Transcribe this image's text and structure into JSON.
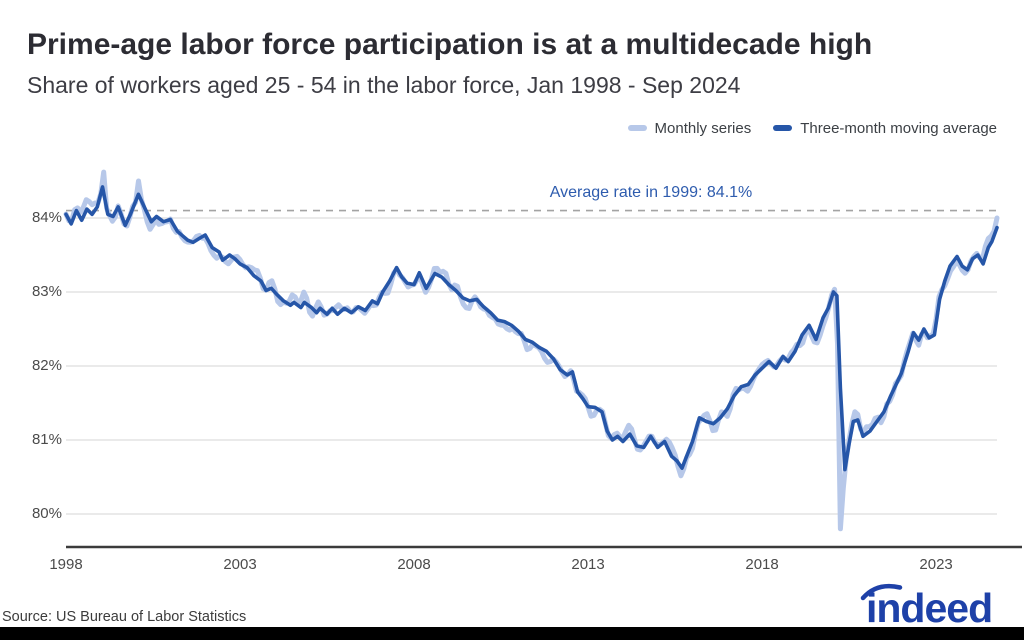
{
  "header": {
    "title": "Prime-age labor force participation is at a multidecade high",
    "subtitle": "Share of workers aged 25 - 54 in the labor force, Jan 1998 - Sep 2024"
  },
  "legend": {
    "items": [
      {
        "label": "Monthly series",
        "color": "#b7c8e9"
      },
      {
        "label": "Three-month moving average",
        "color": "#2656a8"
      }
    ]
  },
  "annotation": {
    "text": "Average rate in 1999: 84.1%"
  },
  "source": {
    "text": "Source: US Bureau of Labor Statistics"
  },
  "logo": {
    "text": "indeed",
    "color": "#1e41a8"
  },
  "colors": {
    "title": "#2c2c33",
    "subtitle": "#3d3d44",
    "grid": "#dedede",
    "axis": "#3b3b3b",
    "dashed_reference": "#a3a3a3",
    "tick_text": "#4b4b4b",
    "annotation_text": "#2e5cae",
    "monthly_series": "#b7c8e9",
    "moving_average": "#2656a8",
    "background": "#ffffff"
  },
  "chart_data": {
    "type": "line",
    "title": "Prime-age labor force participation is at a multidecade high",
    "subtitle": "Share of workers aged 25 - 54 in the labor force, Jan 1998 - Sep 2024",
    "xlabel": "",
    "ylabel": "",
    "x_ticks": [
      1998,
      2003,
      2008,
      2013,
      2018,
      2023
    ],
    "y_ticks": [
      {
        "value": 84,
        "label": "84%"
      },
      {
        "value": 83,
        "label": "83%"
      },
      {
        "value": 82,
        "label": "82%"
      },
      {
        "value": 81,
        "label": "81%"
      },
      {
        "value": 80,
        "label": "80%"
      }
    ],
    "xlim": [
      1998,
      2024.75
    ],
    "ylim": [
      79.55,
      84.72
    ],
    "grid": true,
    "legend_position": "top-right",
    "reference_line": {
      "value": 84.1,
      "label": "Average rate in 1999: 84.1%",
      "style": "dashed"
    },
    "series": [
      {
        "name": "Monthly series",
        "type": "derived",
        "basis": "Three-month moving average",
        "noise_amplitude": 0.11,
        "extreme_points": [
          [
            1999.08,
            84.62
          ],
          [
            2000.08,
            84.5
          ],
          [
            2020.17,
            82.3
          ],
          [
            2020.25,
            79.8
          ],
          [
            2020.33,
            80.35
          ],
          [
            2024.75,
            84.0
          ]
        ]
      },
      {
        "name": "Three-month moving average",
        "points": [
          [
            1998.0,
            84.05
          ],
          [
            1998.15,
            83.92
          ],
          [
            1998.3,
            84.1
          ],
          [
            1998.45,
            83.97
          ],
          [
            1998.6,
            84.12
          ],
          [
            1998.75,
            84.05
          ],
          [
            1998.9,
            84.15
          ],
          [
            1999.05,
            84.42
          ],
          [
            1999.2,
            84.05
          ],
          [
            1999.35,
            84.02
          ],
          [
            1999.5,
            84.15
          ],
          [
            1999.7,
            83.9
          ],
          [
            1999.85,
            84.05
          ],
          [
            2000.08,
            84.32
          ],
          [
            2000.3,
            84.1
          ],
          [
            2000.45,
            83.95
          ],
          [
            2000.6,
            84.02
          ],
          [
            2000.8,
            83.95
          ],
          [
            2001.0,
            83.98
          ],
          [
            2001.2,
            83.82
          ],
          [
            2001.35,
            83.76
          ],
          [
            2001.5,
            83.7
          ],
          [
            2001.65,
            83.67
          ],
          [
            2001.85,
            83.73
          ],
          [
            2002.0,
            83.77
          ],
          [
            2002.2,
            83.6
          ],
          [
            2002.4,
            83.54
          ],
          [
            2002.5,
            83.43
          ],
          [
            2002.7,
            83.5
          ],
          [
            2002.85,
            83.45
          ],
          [
            2003.0,
            83.38
          ],
          [
            2003.2,
            83.33
          ],
          [
            2003.4,
            83.22
          ],
          [
            2003.6,
            83.15
          ],
          [
            2003.75,
            83.02
          ],
          [
            2003.9,
            83.05
          ],
          [
            2004.05,
            82.97
          ],
          [
            2004.25,
            82.88
          ],
          [
            2004.45,
            82.82
          ],
          [
            2004.55,
            82.86
          ],
          [
            2004.75,
            82.79
          ],
          [
            2004.85,
            82.86
          ],
          [
            2005.05,
            82.79
          ],
          [
            2005.2,
            82.72
          ],
          [
            2005.3,
            82.78
          ],
          [
            2005.5,
            82.7
          ],
          [
            2005.65,
            82.78
          ],
          [
            2005.8,
            82.7
          ],
          [
            2006.0,
            82.78
          ],
          [
            2006.2,
            82.72
          ],
          [
            2006.4,
            82.8
          ],
          [
            2006.6,
            82.75
          ],
          [
            2006.8,
            82.88
          ],
          [
            2006.95,
            82.84
          ],
          [
            2007.1,
            83.0
          ],
          [
            2007.3,
            83.15
          ],
          [
            2007.5,
            83.33
          ],
          [
            2007.65,
            83.2
          ],
          [
            2007.8,
            83.12
          ],
          [
            2008.0,
            83.1
          ],
          [
            2008.15,
            83.26
          ],
          [
            2008.35,
            83.05
          ],
          [
            2008.6,
            83.25
          ],
          [
            2008.8,
            83.2
          ],
          [
            2009.0,
            83.1
          ],
          [
            2009.2,
            83.02
          ],
          [
            2009.4,
            82.92
          ],
          [
            2009.6,
            82.88
          ],
          [
            2009.8,
            82.9
          ],
          [
            2010.0,
            82.8
          ],
          [
            2010.2,
            82.72
          ],
          [
            2010.4,
            82.62
          ],
          [
            2010.6,
            82.6
          ],
          [
            2010.8,
            82.55
          ],
          [
            2011.0,
            82.47
          ],
          [
            2011.2,
            82.36
          ],
          [
            2011.4,
            82.32
          ],
          [
            2011.6,
            82.25
          ],
          [
            2011.8,
            82.2
          ],
          [
            2012.0,
            82.1
          ],
          [
            2012.2,
            81.95
          ],
          [
            2012.4,
            81.88
          ],
          [
            2012.55,
            81.92
          ],
          [
            2012.7,
            81.65
          ],
          [
            2012.85,
            81.56
          ],
          [
            2013.0,
            81.45
          ],
          [
            2013.2,
            81.44
          ],
          [
            2013.4,
            81.38
          ],
          [
            2013.55,
            81.12
          ],
          [
            2013.7,
            81.0
          ],
          [
            2013.85,
            81.05
          ],
          [
            2014.0,
            80.98
          ],
          [
            2014.2,
            81.08
          ],
          [
            2014.4,
            80.92
          ],
          [
            2014.6,
            80.9
          ],
          [
            2014.8,
            81.05
          ],
          [
            2015.0,
            80.9
          ],
          [
            2015.2,
            80.98
          ],
          [
            2015.4,
            80.78
          ],
          [
            2015.55,
            80.72
          ],
          [
            2015.7,
            80.62
          ],
          [
            2015.85,
            80.8
          ],
          [
            2016.0,
            80.98
          ],
          [
            2016.2,
            81.3
          ],
          [
            2016.4,
            81.25
          ],
          [
            2016.6,
            81.22
          ],
          [
            2016.8,
            81.3
          ],
          [
            2017.0,
            81.42
          ],
          [
            2017.2,
            81.6
          ],
          [
            2017.4,
            81.72
          ],
          [
            2017.6,
            81.75
          ],
          [
            2017.8,
            81.88
          ],
          [
            2018.0,
            81.97
          ],
          [
            2018.2,
            82.06
          ],
          [
            2018.4,
            81.97
          ],
          [
            2018.6,
            82.13
          ],
          [
            2018.75,
            82.06
          ],
          [
            2018.95,
            82.2
          ],
          [
            2019.15,
            82.42
          ],
          [
            2019.35,
            82.55
          ],
          [
            2019.55,
            82.36
          ],
          [
            2019.75,
            82.65
          ],
          [
            2019.9,
            82.78
          ],
          [
            2020.05,
            83.0
          ],
          [
            2020.15,
            82.95
          ],
          [
            2020.25,
            81.7
          ],
          [
            2020.38,
            80.6
          ],
          [
            2020.5,
            80.95
          ],
          [
            2020.62,
            81.25
          ],
          [
            2020.75,
            81.27
          ],
          [
            2020.9,
            81.05
          ],
          [
            2021.1,
            81.12
          ],
          [
            2021.3,
            81.25
          ],
          [
            2021.5,
            81.38
          ],
          [
            2021.7,
            81.6
          ],
          [
            2021.85,
            81.75
          ],
          [
            2022.0,
            81.9
          ],
          [
            2022.2,
            82.2
          ],
          [
            2022.35,
            82.45
          ],
          [
            2022.5,
            82.35
          ],
          [
            2022.65,
            82.5
          ],
          [
            2022.8,
            82.38
          ],
          [
            2022.95,
            82.42
          ],
          [
            2023.1,
            82.9
          ],
          [
            2023.25,
            83.15
          ],
          [
            2023.4,
            83.35
          ],
          [
            2023.6,
            83.48
          ],
          [
            2023.75,
            83.35
          ],
          [
            2023.9,
            83.3
          ],
          [
            2024.05,
            83.45
          ],
          [
            2024.2,
            83.5
          ],
          [
            2024.35,
            83.38
          ],
          [
            2024.5,
            83.6
          ],
          [
            2024.6,
            83.68
          ],
          [
            2024.75,
            83.87
          ]
        ]
      }
    ]
  }
}
